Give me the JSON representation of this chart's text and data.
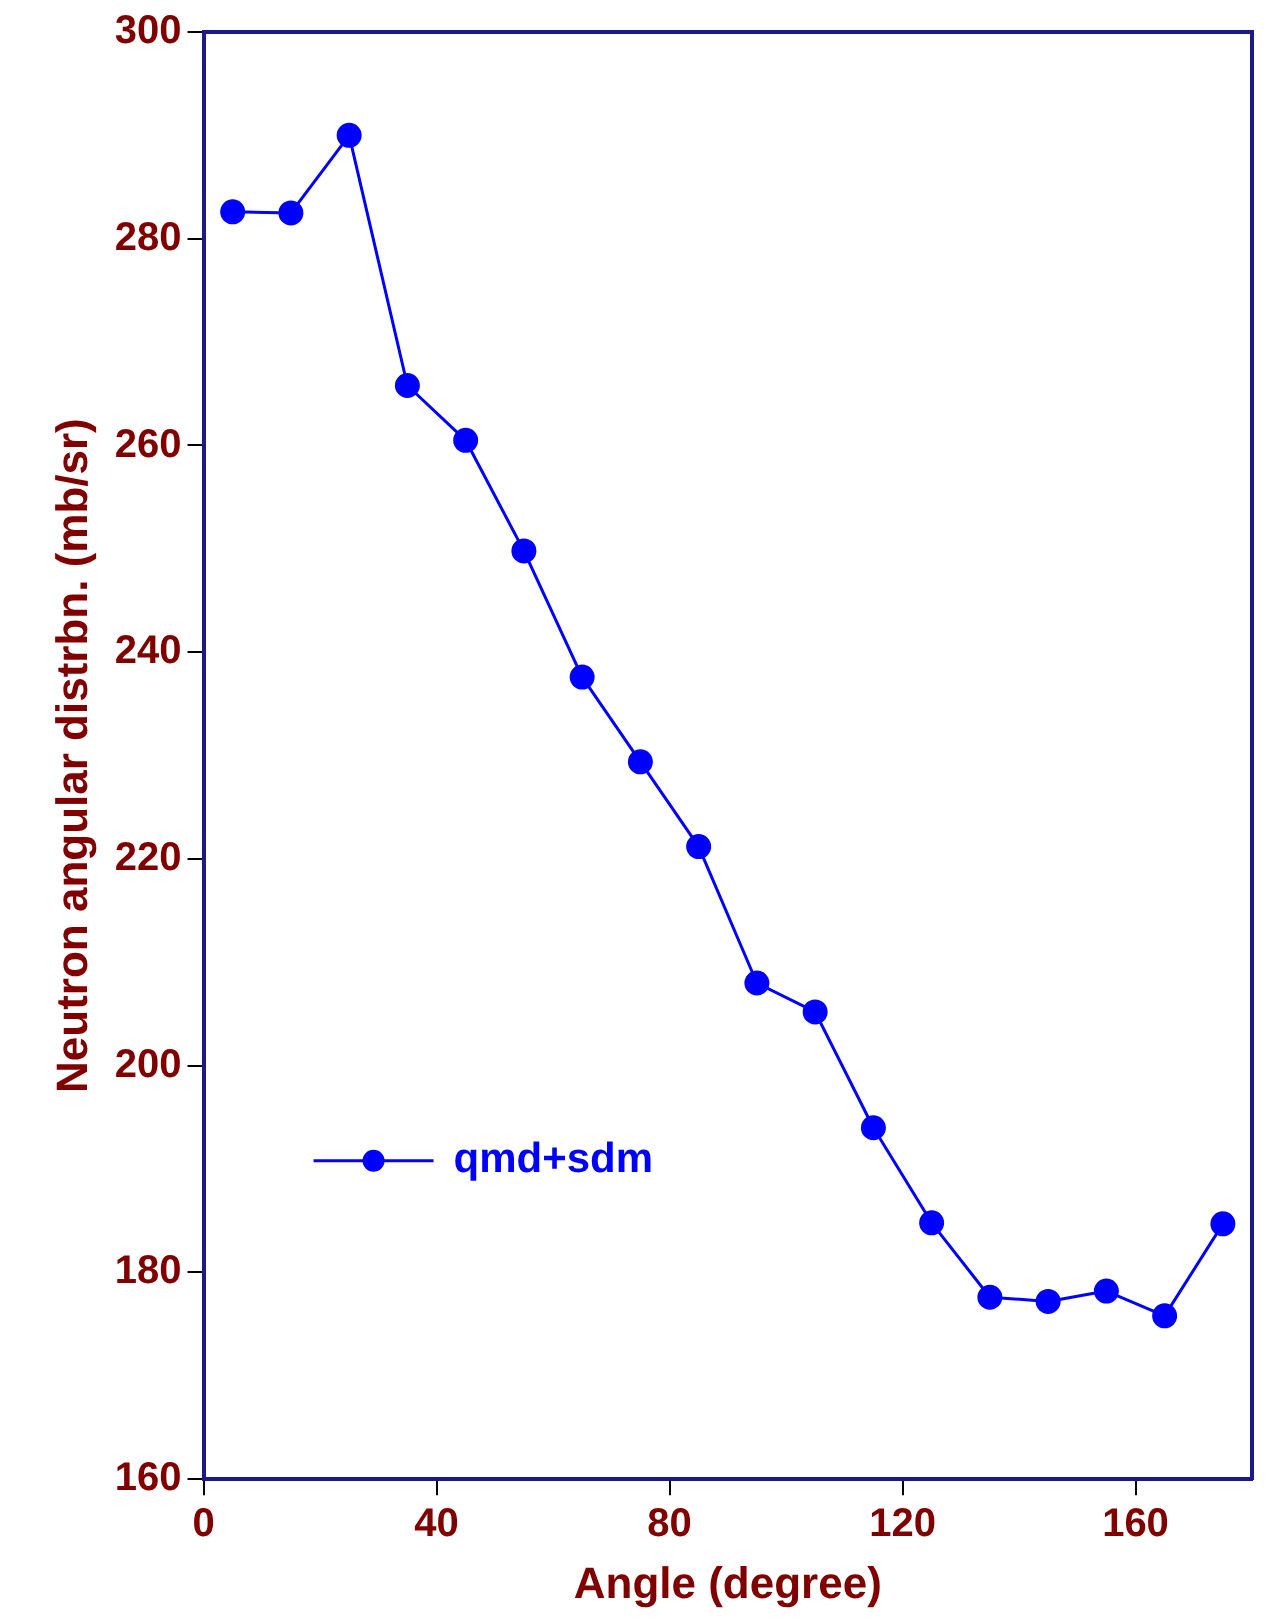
{
  "chart_data": {
    "type": "line",
    "xlabel": "Angle (degree)",
    "ylabel": "Neutron angular distrbn. (mb/sr)",
    "x": [
      5,
      15,
      25,
      35,
      45,
      55,
      65,
      75,
      85,
      95,
      105,
      115,
      125,
      135,
      145,
      155,
      165,
      175
    ],
    "series": [
      {
        "name": "qmd+sdm",
        "color": "#0000ff",
        "values": [
          282.6,
          282.5,
          290,
          265.8,
          260.5,
          249.8,
          237.6,
          229.4,
          221.2,
          208,
          205.2,
          194,
          184.8,
          177.6,
          177.2,
          178.2,
          175.8,
          184.7
        ]
      }
    ],
    "xlim": [
      0,
      180
    ],
    "xticks": [
      0,
      40,
      80,
      120,
      160
    ],
    "ylim": [
      160,
      300
    ],
    "yticks": [
      160,
      180,
      200,
      220,
      240,
      260,
      280,
      300
    ],
    "grid": false,
    "legend": "left",
    "marker": "circle",
    "line_style": "solid"
  }
}
